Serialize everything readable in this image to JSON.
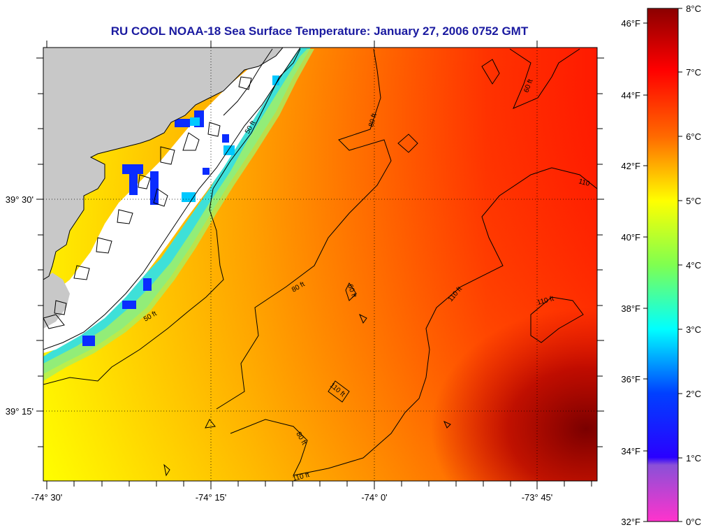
{
  "title": "RU COOL  NOAA-18  Sea Surface Temperature:  January 27, 2006 0752 GMT",
  "axes": {
    "lon_labels": [
      "-74° 30'",
      "-74° 15'",
      "-74° 0'",
      "-73° 45'"
    ],
    "lat_labels": [
      "39° 30'",
      "39° 15'"
    ]
  },
  "colorbar": {
    "fahrenheit_labels": [
      "46°F",
      "44°F",
      "42°F",
      "40°F",
      "38°F",
      "36°F",
      "34°F",
      "32°F"
    ],
    "celsius_labels": [
      "8°C",
      "7°C",
      "6°C",
      "5°C",
      "4°C",
      "3°C",
      "2°C",
      "1°C",
      "0°C"
    ],
    "colors": [
      "#8b0000",
      "#ff0000",
      "#ff8c00",
      "#ffff00",
      "#00ffff",
      "#0000ff",
      "#8a2be2",
      "#ff33cc"
    ]
  },
  "contours": {
    "labels": [
      "50 ft",
      "50 ft",
      "80 ft",
      "80 ft",
      "80 ft",
      "60 ft",
      "60 ft",
      "110 ft",
      "110 ft",
      "110 ft",
      "110 ft",
      "110"
    ]
  },
  "colors": {
    "land": "#c8c8c8",
    "cloud": "#ffffff",
    "title": "#1a1aa0"
  }
}
